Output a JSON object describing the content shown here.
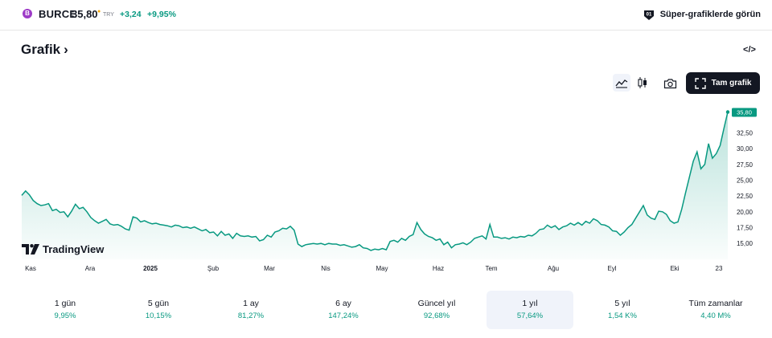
{
  "header": {
    "symbol_logo": "B",
    "symbol": "BURCE",
    "price": "35,80",
    "price_dot": "●",
    "currency": "TRY",
    "change": "+3,24",
    "change_percent": "+9,95%",
    "super_charts_label": "Süper-grafiklerde görün",
    "super_charts_icon_text": "01"
  },
  "section": {
    "title": "Grafik",
    "chevron": "›",
    "embed_icon": "</>"
  },
  "toolbar": {
    "full_chart_label": "Tam grafik",
    "icons": [
      "area-chart-icon",
      "candles-icon",
      "camera-icon",
      "fullscreen-icon"
    ]
  },
  "branding": {
    "label": "TradingView",
    "mark": "17"
  },
  "colors": {
    "line": "#089981",
    "fill_top": "#cde9e1",
    "badge": "#089981",
    "text": "#131722",
    "muted": "#787b86"
  },
  "chart_data": {
    "type": "area",
    "series_label": "BURCE",
    "ylim": [
      13.5,
      36.5
    ],
    "y_ticks": [
      "35,80",
      "32,50",
      "30,00",
      "27,50",
      "25,00",
      "22,50",
      "20,00",
      "17,50",
      "15,00"
    ],
    "x_labels": [
      "Kas",
      "Ara",
      "2025",
      "Şub",
      "Mar",
      "Nis",
      "May",
      "Haz",
      "Tem",
      "Ağu",
      "Eyl",
      "Eki",
      "23"
    ],
    "last_value_label": "35,80",
    "grid": false,
    "values": [
      22.6,
      23.3,
      22.7,
      21.8,
      21.3,
      21.0,
      21.1,
      21.3,
      20.2,
      20.4,
      19.9,
      20.0,
      19.2,
      20.1,
      21.2,
      20.5,
      20.7,
      20.0,
      19.1,
      18.6,
      18.2,
      18.5,
      18.8,
      18.1,
      17.9,
      18.0,
      17.7,
      17.3,
      17.1,
      19.2,
      19.0,
      18.4,
      18.6,
      18.3,
      18.1,
      18.2,
      18.0,
      17.9,
      17.8,
      17.6,
      17.9,
      17.8,
      17.5,
      17.6,
      17.4,
      17.6,
      17.3,
      17.0,
      17.2,
      16.7,
      16.8,
      16.2,
      16.9,
      16.3,
      16.5,
      15.8,
      16.6,
      16.2,
      16.1,
      16.2,
      16.0,
      16.1,
      15.4,
      15.6,
      16.3,
      16.0,
      16.8,
      17.0,
      17.4,
      17.3,
      17.7,
      17.1,
      14.9,
      14.5,
      14.8,
      14.9,
      15.0,
      14.9,
      15.0,
      14.8,
      15.0,
      14.9,
      14.9,
      14.7,
      14.8,
      14.6,
      14.4,
      14.5,
      14.8,
      14.3,
      14.2,
      13.9,
      14.1,
      14.0,
      14.2,
      14.0,
      15.3,
      15.5,
      15.2,
      15.8,
      15.5,
      16.1,
      16.4,
      18.3,
      17.2,
      16.5,
      16.1,
      15.9,
      15.5,
      15.7,
      14.8,
      15.2,
      14.3,
      14.8,
      14.9,
      15.1,
      14.8,
      15.2,
      15.8,
      16.0,
      16.2,
      15.7,
      18.0,
      16.0,
      16.0,
      15.8,
      15.9,
      15.7,
      16.0,
      15.9,
      16.1,
      16.0,
      16.3,
      16.2,
      16.6,
      17.2,
      17.3,
      17.9,
      17.5,
      17.8,
      17.2,
      17.6,
      17.8,
      18.2,
      17.9,
      18.3,
      17.9,
      18.5,
      18.2,
      18.9,
      18.6,
      18.0,
      17.9,
      17.6,
      17.0,
      16.9,
      16.3,
      16.8,
      17.5,
      18.0,
      19.0,
      20.0,
      21.0,
      19.5,
      19.0,
      18.8,
      20.1,
      20.0,
      19.6,
      18.6,
      18.2,
      18.4,
      20.4,
      23.0,
      25.5,
      28.0,
      29.5,
      26.8,
      27.5,
      30.8,
      28.5,
      29.2,
      30.5,
      33.2,
      35.8
    ]
  },
  "ranges": [
    {
      "label": "1 gün",
      "value": "9,95%",
      "active": false
    },
    {
      "label": "5 gün",
      "value": "10,15%",
      "active": false
    },
    {
      "label": "1 ay",
      "value": "81,27%",
      "active": false
    },
    {
      "label": "6 ay",
      "value": "147,24%",
      "active": false
    },
    {
      "label": "Güncel yıl",
      "value": "92,68%",
      "active": false
    },
    {
      "label": "1 yıl",
      "value": "57,64%",
      "active": true
    },
    {
      "label": "5 yıl",
      "value": "1,54 K%",
      "active": false
    },
    {
      "label": "Tüm zamanlar",
      "value": "4,40 M%",
      "active": false
    }
  ]
}
